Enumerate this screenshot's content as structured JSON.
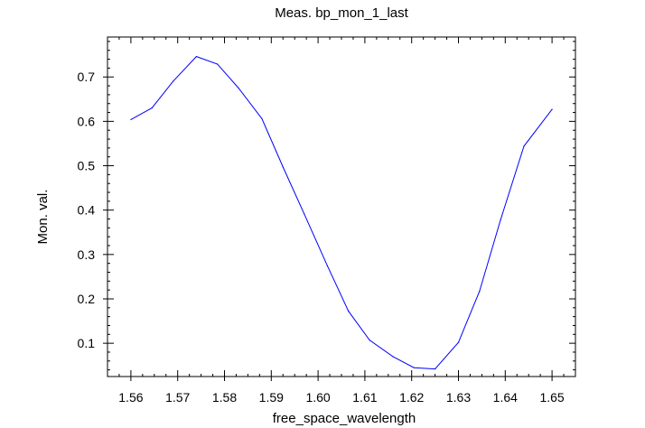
{
  "chart_data": {
    "type": "line",
    "title": "Meas. bp_mon_1_last",
    "xlabel": "free_space_wavelength",
    "ylabel": "Mon. val.",
    "xlim": [
      1.555,
      1.655
    ],
    "ylim": [
      0.025,
      0.79
    ],
    "xticks": [
      "1.56",
      "1.57",
      "1.58",
      "1.59",
      "1.60",
      "1.61",
      "1.62",
      "1.63",
      "1.64",
      "1.65"
    ],
    "yticks": [
      "0.1",
      "0.2",
      "0.3",
      "0.4",
      "0.5",
      "0.6",
      "0.7"
    ],
    "grid": false,
    "series": [
      {
        "color": "#0000ff",
        "x": [
          1.56,
          1.5645,
          1.569,
          1.574,
          1.5785,
          1.583,
          1.588,
          1.5925,
          1.597,
          1.602,
          1.6065,
          1.611,
          1.616,
          1.6205,
          1.625,
          1.63,
          1.6345,
          1.639,
          1.644,
          1.65
        ],
        "y": [
          0.604,
          0.63,
          0.69,
          0.746,
          0.729,
          0.675,
          0.606,
          0.497,
          0.392,
          0.274,
          0.172,
          0.107,
          0.07,
          0.045,
          0.042,
          0.102,
          0.217,
          0.378,
          0.544,
          0.627
        ]
      }
    ]
  }
}
